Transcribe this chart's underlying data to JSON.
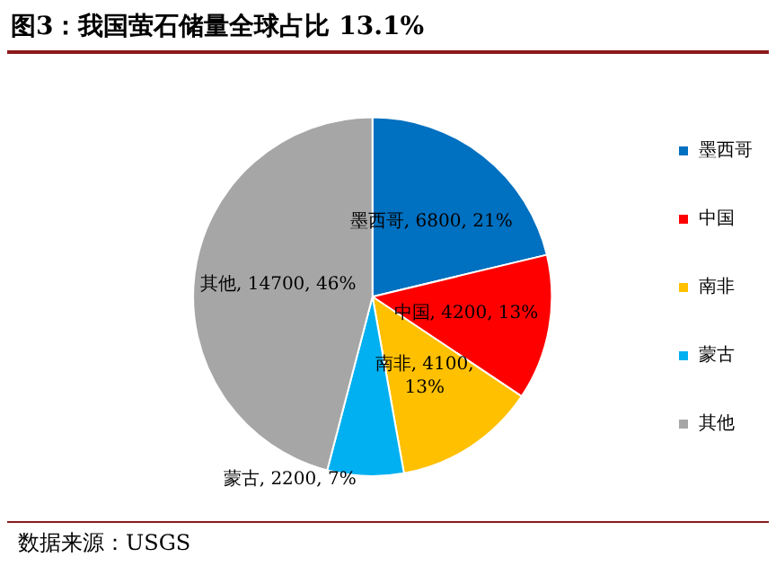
{
  "chart_data": {
    "type": "pie",
    "title": "图3：我国萤石储量全球占比 13.1%",
    "categories": [
      "墨西哥",
      "中国",
      "南非",
      "蒙古",
      "其他"
    ],
    "values": [
      6800,
      4200,
      4100,
      2200,
      14700
    ],
    "colors": [
      "#0070c0",
      "#ff0000",
      "#ffc000",
      "#00b0f0",
      "#a6a6a6"
    ],
    "value_labels": [
      "墨西哥, 6800, 21%",
      "中国, 4200, 13%",
      "南非, 4100,\n13%",
      "蒙古, 2200, 7%",
      "其他, 14700, 46%"
    ],
    "legend": "right",
    "annotations": [
      "数据来源：USGS"
    ]
  }
}
